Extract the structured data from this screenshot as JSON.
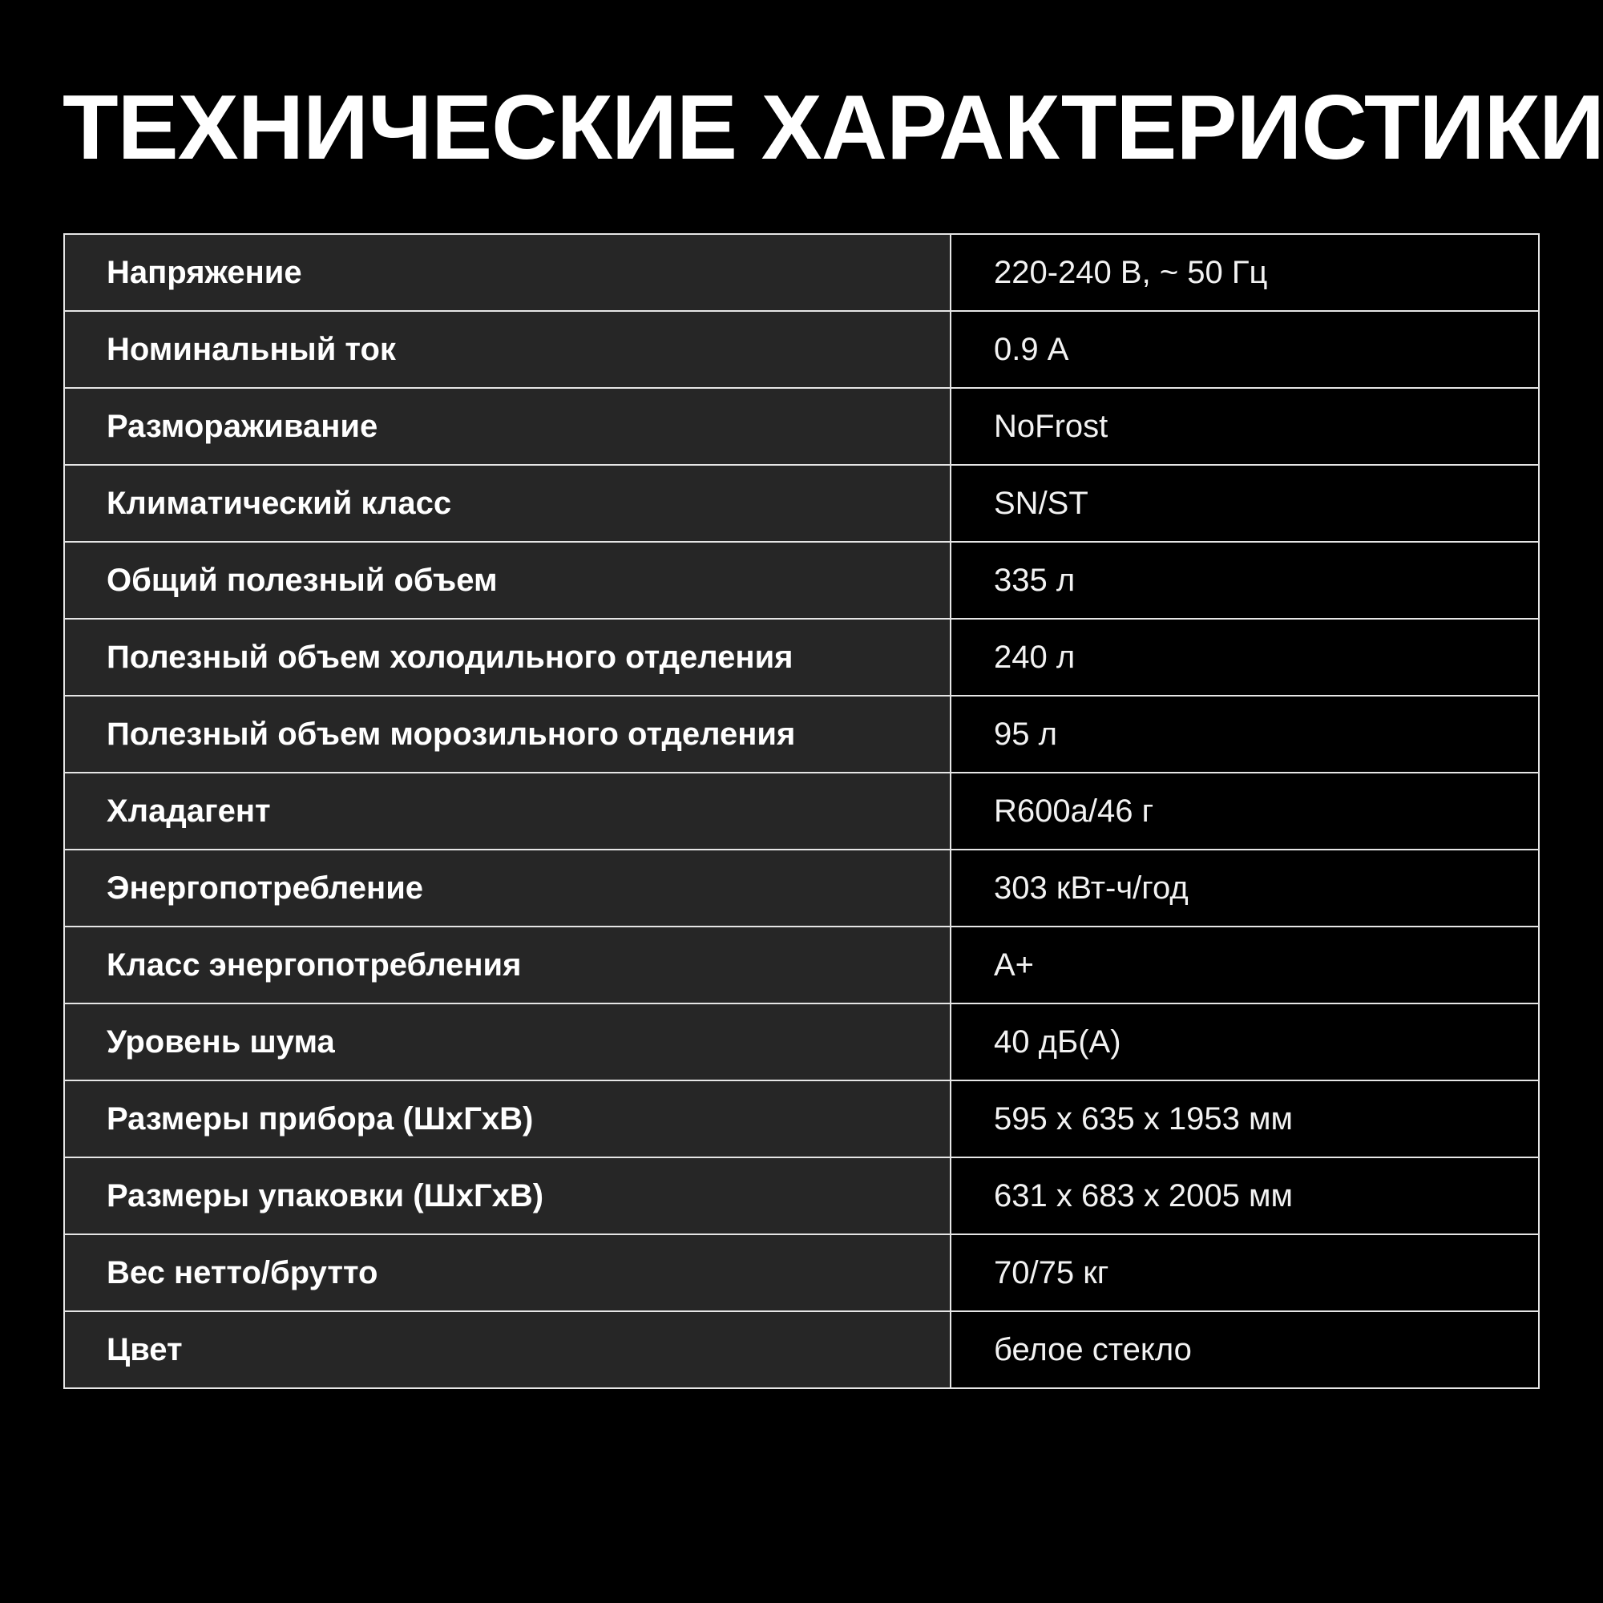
{
  "title": "ТЕХНИЧЕСКИЕ ХАРАКТЕРИСТИКИ",
  "specs": [
    {
      "label": "Напряжение",
      "value": "220-240 В, ~ 50 Гц"
    },
    {
      "label": "Номинальный ток",
      "value": "0.9 А"
    },
    {
      "label": "Размораживание",
      "value": "NoFrost"
    },
    {
      "label": "Климатический класс",
      "value": "SN/ST"
    },
    {
      "label": "Общий полезный объем",
      "value": "335 л"
    },
    {
      "label": "Полезный объем холодильного отделения",
      "value": "240 л"
    },
    {
      "label": "Полезный объем морозильного отделения",
      "value": "95 л"
    },
    {
      "label": "Хладагент",
      "value": "R600a/46 г"
    },
    {
      "label": "Энергопотребление",
      "value": "303 кВт-ч/год"
    },
    {
      "label": "Класс энергопотребления",
      "value": "A+"
    },
    {
      "label": "Уровень шума",
      "value": "40 дБ(А)"
    },
    {
      "label": "Размеры прибора (ШхГхВ)",
      "value": "595 x 635 x 1953 мм"
    },
    {
      "label": "Размеры упаковки (ШхГхВ)",
      "value": "631 x 683 x 2005 мм"
    },
    {
      "label": "Вес нетто/брутто",
      "value": "70/75 кг"
    },
    {
      "label": "Цвет",
      "value": "белое стекло"
    }
  ]
}
